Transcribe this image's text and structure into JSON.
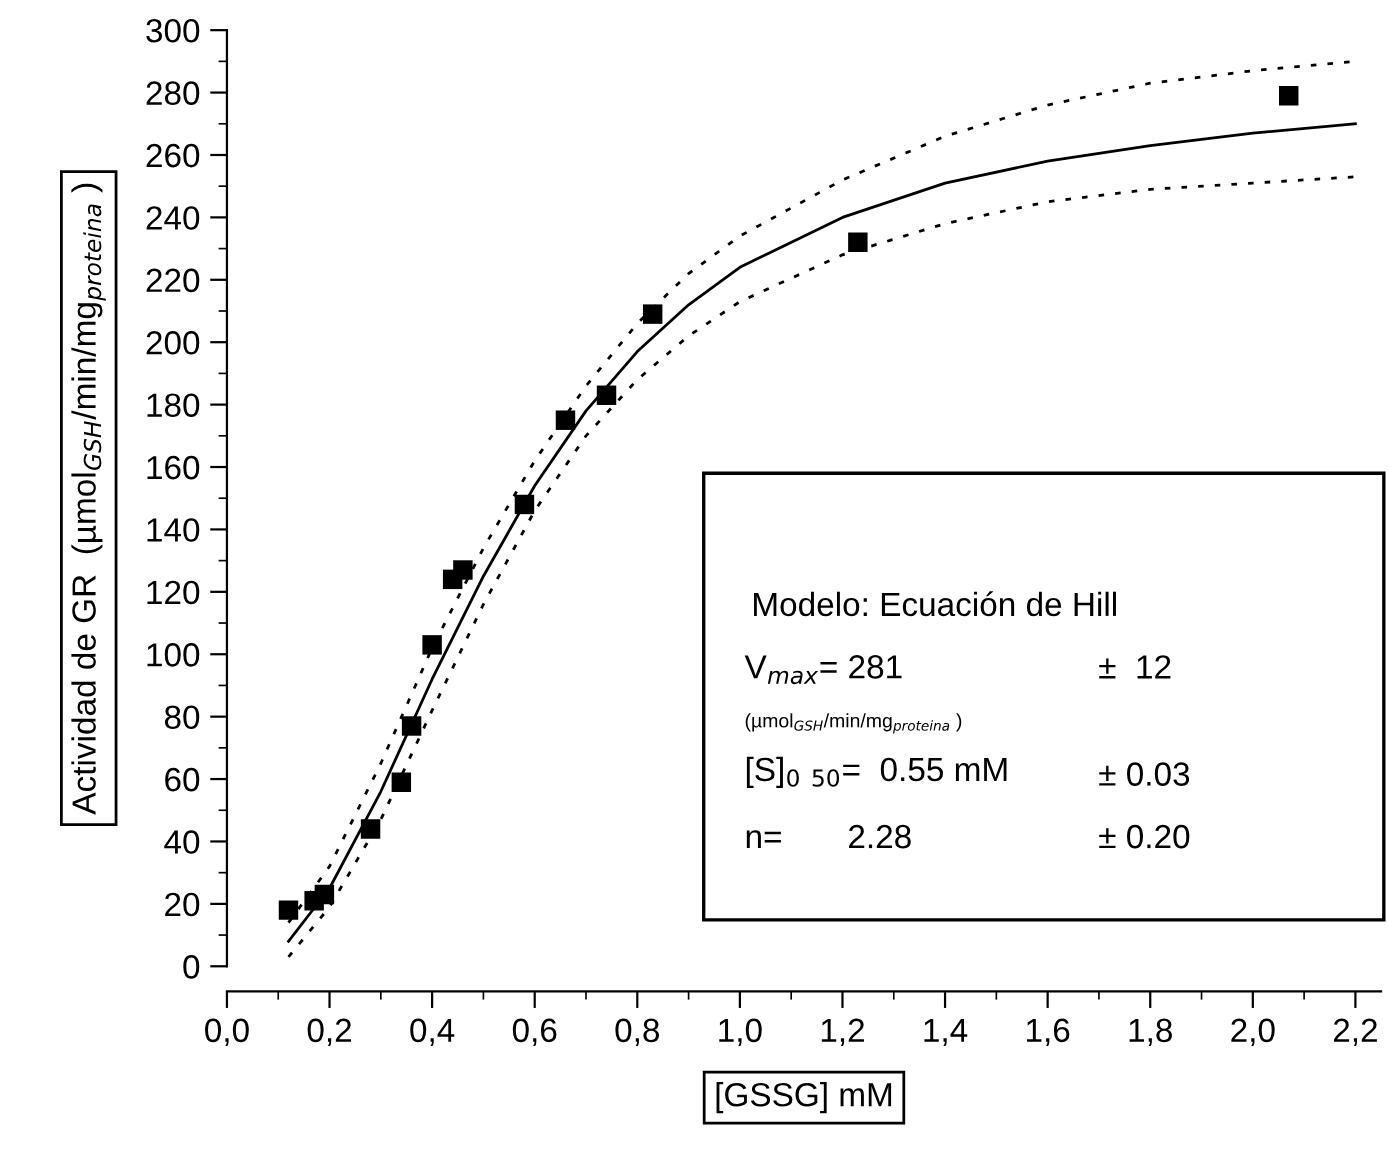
{
  "chart_data": {
    "type": "scatter",
    "xlabel": "[GSSG] mM",
    "ylabel": "Actividad de GR  (µmol$_{GSH}$/min/mg$_{proteina}$ )",
    "xlim": [
      0,
      2.25
    ],
    "ylim": [
      0,
      300
    ],
    "xticks": [
      {
        "value": 0,
        "label": "0,0"
      },
      {
        "value": 0.2,
        "label": "0,2"
      },
      {
        "value": 0.4,
        "label": "0,4"
      },
      {
        "value": 0.6,
        "label": "0,6"
      },
      {
        "value": 0.8,
        "label": "0,8"
      },
      {
        "value": 1.0,
        "label": "1,0"
      },
      {
        "value": 1.2,
        "label": "1,2"
      },
      {
        "value": 1.4,
        "label": "1,4"
      },
      {
        "value": 1.6,
        "label": "1,6"
      },
      {
        "value": 1.8,
        "label": "1,8"
      },
      {
        "value": 2.0,
        "label": "2,0"
      },
      {
        "value": 2.2,
        "label": "2,2"
      }
    ],
    "yticks": [
      0,
      20,
      40,
      60,
      80,
      100,
      120,
      140,
      160,
      180,
      200,
      220,
      240,
      260,
      280,
      300
    ],
    "grid": false,
    "legend": false,
    "series": [
      {
        "color": "#000000",
        "marker": "square",
        "x": [
          0.12,
          0.17,
          0.19,
          0.28,
          0.34,
          0.36,
          0.4,
          0.44,
          0.46,
          0.58,
          0.66,
          0.74,
          0.83,
          1.23,
          2.07
        ],
        "values": [
          18,
          21,
          23,
          44,
          59,
          77,
          103,
          124,
          127,
          148,
          175,
          183,
          209,
          232,
          279
        ]
      },
      {
        "type": "line",
        "color": "#000000",
        "line_style": "solid",
        "marker": "none",
        "x": [
          0.12,
          0.2,
          0.3,
          0.4,
          0.5,
          0.6,
          0.7,
          0.8,
          0.9,
          1.0,
          1.2,
          1.4,
          1.6,
          1.8,
          2.0,
          2.2
        ],
        "values": [
          8,
          25,
          56,
          92,
          125,
          154,
          178,
          197,
          212,
          224,
          240,
          251,
          258,
          263,
          267,
          270
        ]
      },
      {
        "type": "line",
        "color": "#000000",
        "line_style": "dotted",
        "marker": "none",
        "x": [
          0.12,
          0.2,
          0.3,
          0.4,
          0.5,
          0.6,
          0.7,
          0.8,
          0.9,
          1.0,
          1.2,
          1.4,
          1.6,
          1.8,
          2.0,
          2.2
        ],
        "values": [
          3,
          19,
          47,
          82,
          116,
          146,
          170,
          188,
          202,
          213,
          228,
          238,
          245,
          249,
          251,
          253
        ]
      },
      {
        "type": "line",
        "color": "#000000",
        "line_style": "dotted",
        "marker": "none",
        "x": [
          0.12,
          0.2,
          0.3,
          0.4,
          0.5,
          0.6,
          0.7,
          0.8,
          0.9,
          1.0,
          1.2,
          1.4,
          1.6,
          1.8,
          2.0,
          2.2
        ],
        "values": [
          14,
          32,
          65,
          102,
          134,
          162,
          186,
          206,
          222,
          234,
          252,
          266,
          276,
          283,
          287,
          290
        ]
      }
    ],
    "annotations": [
      "Modelo: Ecuación de Hill",
      "V$_{max}$= 281",
      "±  12",
      "(µmol$_{GSH}$/min/mg$_{proteina}$ )",
      "[S]$_{0}$ $_{50}$=  0.55 mM",
      "± 0.03",
      "n=       2.28",
      "± 0.20"
    ]
  }
}
